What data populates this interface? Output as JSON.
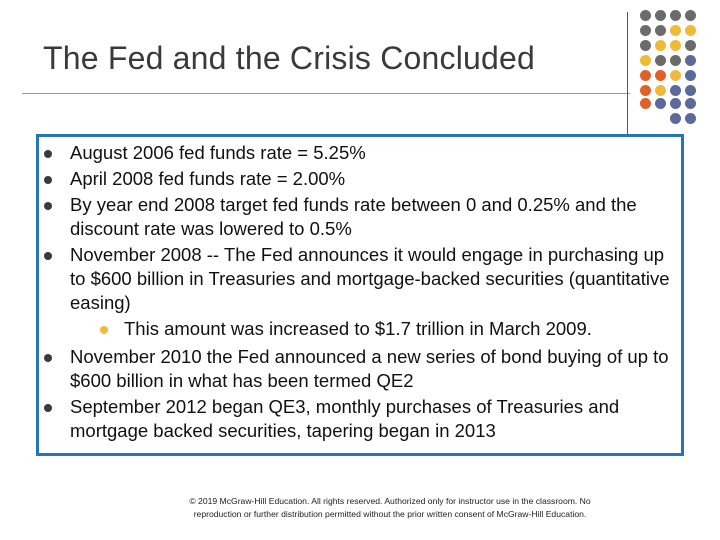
{
  "slide": {
    "title": "The Fed and the Crisis Concluded",
    "bullets": [
      "August 2006 fed funds rate = 5.25%",
      "April 2008 fed funds rate = 2.00%",
      "By year end 2008 target fed funds rate between 0 and 0.25% and the discount rate was lowered to 0.5%",
      "November 2008 -- The Fed announces it would engage in purchasing up to $600 billion in Treasuries and mortgage-backed securities (quantitative easing)",
      "November 2010 the Fed announced a new series of bond buying of up to $600 billion in what has been termed QE2",
      "September 2012 began QE3, monthly purchases of Treasuries and mortgage backed securities, tapering began in 2013"
    ],
    "sub_bullet": "This amount was increased to $1.7 trillion in March 2009.",
    "footer_line1": "© 2019 McGraw-Hill Education. All rights reserved. Authorized only for instructor use in the classroom. No",
    "footer_line2": "reproduction or further distribution permitted without the prior written consent of McGraw-Hill Education."
  },
  "colors": {
    "gray": "#6b6b6b",
    "gold": "#f0b93a",
    "orange": "#e0602a",
    "slate": "#5b6a9a",
    "box_border": "#2a74b5"
  },
  "decor": {
    "dot_rows": [
      [
        "gray",
        "gray",
        "gray",
        "gray"
      ],
      [
        "gray",
        "gray",
        "gold",
        "gold"
      ],
      [
        "gray",
        "gold",
        "gold",
        "gray"
      ],
      [
        "gold",
        "gray",
        "gray",
        "slate"
      ],
      [
        "orange",
        "orange",
        "gold",
        "slate"
      ],
      [
        "orange",
        "gold",
        "slate",
        "slate"
      ],
      [
        "orange",
        "slate",
        "slate",
        "slate"
      ],
      [
        "",
        "",
        "slate",
        "slate"
      ]
    ]
  }
}
